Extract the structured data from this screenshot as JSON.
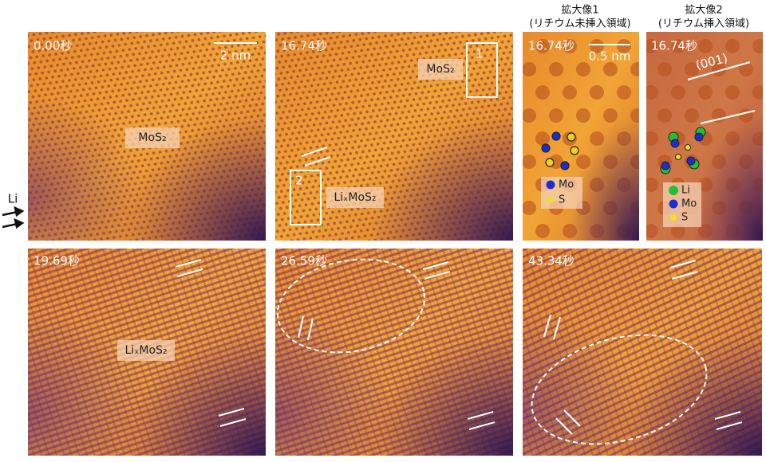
{
  "column_headers": [
    {
      "title": "拡大像1",
      "subtitle": "(リチウム未挿入領域)"
    },
    {
      "title": "拡大像2",
      "subtitle": "(リチウム挿入領域)"
    }
  ],
  "side_label": "Li",
  "panels": [
    {
      "time": "0.00秒",
      "scale_bar": "2 nm",
      "labels": [
        "MoS₂"
      ]
    },
    {
      "time": "16.74秒",
      "labels": [
        "MoS₂",
        "LiₓMoS₂"
      ],
      "boxes": [
        "1",
        "2"
      ]
    },
    {
      "time": "16.74秒",
      "scale_bar": "0.5 nm",
      "legend": [
        "Mo",
        "S"
      ]
    },
    {
      "time": "16.74秒",
      "annotation": "(001)",
      "legend": [
        "Li",
        "Mo",
        "S"
      ]
    },
    {
      "time": "19.69秒",
      "labels": [
        "LiₓMoS₂"
      ]
    },
    {
      "time": "26.59秒"
    },
    {
      "time": "43.34秒"
    }
  ]
}
